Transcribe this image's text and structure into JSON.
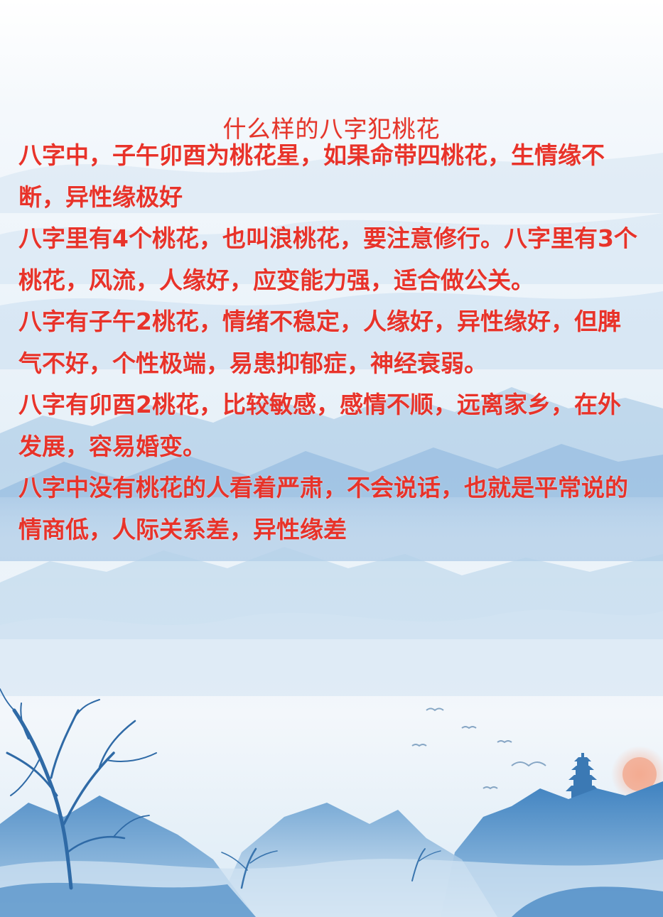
{
  "colors": {
    "text": "#e8332a",
    "title": "#e5352a",
    "mountain_dark": "#4f8ec6",
    "mountain_light": "#bcd8ee",
    "sky": "#ffffff",
    "sun": "#f2a48a"
  },
  "title": "什么样的八字犯桃花",
  "paragraphs": [
    "八字中，子午卯酉为桃花星，如果命带四桃花，生情缘不断，异性缘极好",
    "八字里有4个桃花，也叫浪桃花，要注意修行。八字里有3个桃花，风流，人缘好，应变能力强，适合做公关。",
    "八字有子午2桃花，情绪不稳定，人缘好，异性缘好，但脾气不好，个性极端，易患抑郁症，神经衰弱。",
    "八字有卯酉2桃花，比较敏感，感情不顺，远离家乡，在外发展，容易婚变。",
    "八字中没有桃花的人看着严肃，不会说话，也就是平常说的情商低，人际关系差，异性缘差"
  ],
  "decorations": {
    "background": "ink-wash-mountain-landscape",
    "left_tree": "bare-tree-branches",
    "right_tower": "pagoda-icon",
    "birds": "flying-birds",
    "sun": "setting-sun"
  }
}
